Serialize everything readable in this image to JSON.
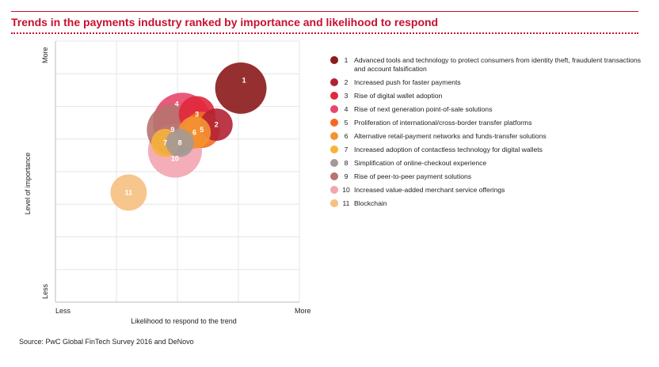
{
  "title": "Trends in the payments industry ranked by importance and likelihood to respond",
  "source": "Source: PwC Global FinTech Survey 2016 and DeNovo",
  "chart_data": {
    "type": "scatter",
    "title": "Trends in the payments industry ranked by importance and likelihood to respond",
    "xlabel": "Likelihood to respond to the trend",
    "ylabel": "Level of importance",
    "x_tick_labels": [
      "Less",
      "More"
    ],
    "y_tick_labels": [
      "Less",
      "More"
    ],
    "xlim": [
      0,
      10
    ],
    "ylim": [
      0,
      10
    ],
    "grid": true,
    "legend_position": "right",
    "series": [
      {
        "id": "1",
        "name": "Advanced tools and technology to protect consumers from identity theft, fraudulent transactions and account falsification",
        "x": 7.6,
        "y": 8.2,
        "size": 10,
        "color": "#8b1a1a"
      },
      {
        "id": "2",
        "name": "Increased push for faster payments",
        "x": 6.6,
        "y": 6.8,
        "size": 4,
        "color": "#b22234"
      },
      {
        "id": "3",
        "name": "Rise of digital wallet adoption",
        "x": 5.8,
        "y": 7.2,
        "size": 5,
        "color": "#e0283c"
      },
      {
        "id": "4",
        "name": "Rise of next generation point-of-sale solutions",
        "x": 5.2,
        "y": 6.9,
        "size": 13,
        "color": "#e8466b"
      },
      {
        "id": "5",
        "name": "Proliferation of international/cross-border transfer platforms",
        "x": 6.0,
        "y": 6.6,
        "size": 5,
        "color": "#f26b22"
      },
      {
        "id": "6",
        "name": "Alternative retail-payment networks and funds-transfer solutions",
        "x": 5.7,
        "y": 6.5,
        "size": 4,
        "color": "#f59331"
      },
      {
        "id": "7",
        "name": "Increased adoption of contactless technology for digital wallets",
        "x": 4.5,
        "y": 6.1,
        "size": 3,
        "color": "#f7b33b"
      },
      {
        "id": "8",
        "name": "Simplification of online-checkout experience",
        "x": 5.1,
        "y": 6.1,
        "size": 3,
        "color": "#a39a96"
      },
      {
        "id": "9",
        "name": "Rise of peer-to-peer payment solutions",
        "x": 4.8,
        "y": 6.6,
        "size": 10,
        "color": "#b7736e"
      },
      {
        "id": "10",
        "name": "Increased value-added merchant service offerings",
        "x": 4.9,
        "y": 5.8,
        "size": 11,
        "color": "#f2a5b1"
      },
      {
        "id": "11",
        "name": "Blockchain",
        "x": 3.0,
        "y": 4.2,
        "size": 5,
        "color": "#f5c07f"
      }
    ]
  }
}
